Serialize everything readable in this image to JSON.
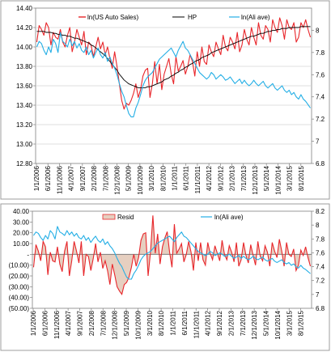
{
  "chart_data": [
    {
      "type": "line",
      "title": "",
      "xlabel": "",
      "ylabel": "",
      "x_tick_labels": [
        "1/1/2006",
        "6/1/2006",
        "11/1/2006",
        "4/1/2007",
        "9/1/2007",
        "2/1/2008",
        "7/1/2008",
        "12/1/2008",
        "5/1/2009",
        "10/1/2009",
        "3/1/2010",
        "8/1/2010",
        "1/1/2011",
        "6/1/2011",
        "11/1/2011",
        "4/1/2012",
        "9/1/2012",
        "2/1/2013",
        "7/1/2013",
        "12/1/2013",
        "5/1/2014",
        "10/1/2014",
        "3/1/2015",
        "8/1/2015"
      ],
      "y_left": {
        "min": 12.8,
        "max": 14.4,
        "step": 0.2,
        "tick_labels": [
          "12.80",
          "13.00",
          "13.20",
          "13.40",
          "13.60",
          "13.80",
          "14.00",
          "14.20",
          "14.40"
        ]
      },
      "y_right": {
        "min": 6.8,
        "max": 8.2,
        "step": 0.2,
        "tick_labels": [
          "6.8",
          "7",
          "7.2",
          "7.4",
          "7.6",
          "7.8",
          "8"
        ]
      },
      "legend_position": "top",
      "series": [
        {
          "name": "ln(US Auto Sales)",
          "color": "#e8262b",
          "axis": "left",
          "values": [
            14.05,
            14.22,
            14.18,
            14.12,
            14.25,
            14.2,
            14.02,
            14.15,
            14.1,
            14.08,
            14.18,
            14.05,
            14.0,
            14.12,
            14.2,
            13.95,
            14.05,
            14.18,
            14.1,
            14.02,
            14.16,
            13.92,
            14.05,
            14.02,
            13.9,
            14.0,
            14.1,
            13.98,
            14.05,
            13.92,
            14.0,
            13.88,
            13.78,
            13.95,
            13.8,
            13.62,
            13.45,
            13.36,
            13.42,
            13.4,
            13.45,
            13.52,
            13.62,
            13.48,
            13.56,
            13.7,
            13.76,
            13.78,
            13.48,
            13.62,
            13.85,
            13.62,
            13.82,
            13.56,
            13.72,
            13.8,
            13.88,
            13.72,
            13.62,
            13.9,
            13.75,
            13.8,
            13.86,
            13.72,
            13.8,
            13.92,
            13.85,
            13.7,
            13.95,
            13.8,
            14.0,
            13.85,
            13.82,
            14.02,
            13.95,
            13.9,
            14.05,
            13.98,
            13.92,
            14.12,
            14.0,
            13.96,
            14.1,
            14.05,
            13.98,
            14.15,
            13.95,
            14.02,
            14.18,
            14.08,
            14.02,
            14.2,
            14.1,
            14.02,
            14.25,
            14.12,
            14.08,
            14.22,
            14.18,
            14.05,
            14.28,
            14.2,
            14.15,
            14.3,
            14.22,
            14.08,
            14.28,
            14.2,
            14.18,
            14.25,
            14.05,
            14.1,
            14.25,
            14.2,
            14.28,
            14.18,
            14.1
          ]
        },
        {
          "name": "HP",
          "color": "#000000",
          "axis": "left",
          "values": [
            14.16,
            14.16,
            14.16,
            14.16,
            14.15,
            14.15,
            14.15,
            14.14,
            14.14,
            14.13,
            14.13,
            14.12,
            14.12,
            14.11,
            14.11,
            14.1,
            14.09,
            14.09,
            14.08,
            14.07,
            14.06,
            14.05,
            14.04,
            14.02,
            14.01,
            13.99,
            13.97,
            13.95,
            13.93,
            13.91,
            13.88,
            13.85,
            13.82,
            13.79,
            13.76,
            13.72,
            13.69,
            13.66,
            13.64,
            13.62,
            13.61,
            13.6,
            13.59,
            13.58,
            13.58,
            13.58,
            13.58,
            13.59,
            13.59,
            13.6,
            13.61,
            13.62,
            13.63,
            13.64,
            13.66,
            13.67,
            13.68,
            13.7,
            13.71,
            13.73,
            13.74,
            13.76,
            13.77,
            13.79,
            13.8,
            13.82,
            13.83,
            13.85,
            13.86,
            13.87,
            13.89,
            13.9,
            13.91,
            13.92,
            13.94,
            13.95,
            13.96,
            13.97,
            13.98,
            13.99,
            14.0,
            14.01,
            14.02,
            14.03,
            14.04,
            14.05,
            14.06,
            14.07,
            14.08,
            14.09,
            14.1,
            14.11,
            14.11,
            14.12,
            14.13,
            14.14,
            14.14,
            14.15,
            14.16,
            14.16,
            14.17,
            14.17,
            14.18,
            14.18,
            14.19,
            14.19,
            14.19,
            14.2,
            14.2,
            14.2,
            14.2,
            14.2,
            14.21,
            14.21,
            14.21,
            14.21,
            14.21
          ]
        },
        {
          "name": "ln(Ali ave)",
          "color": "#23aee5",
          "axis": "right",
          "values": [
            7.85,
            7.9,
            7.88,
            7.82,
            7.78,
            7.85,
            7.8,
            7.92,
            7.88,
            7.8,
            7.98,
            7.9,
            7.88,
            7.85,
            7.92,
            7.86,
            7.9,
            7.84,
            7.88,
            7.82,
            7.8,
            7.85,
            7.78,
            7.82,
            7.75,
            7.8,
            7.84,
            7.78,
            7.75,
            7.8,
            7.72,
            7.76,
            7.7,
            7.66,
            7.6,
            7.52,
            7.45,
            7.4,
            7.32,
            7.25,
            7.22,
            7.22,
            7.3,
            7.35,
            7.42,
            7.5,
            7.55,
            7.58,
            7.6,
            7.62,
            7.66,
            7.7,
            7.74,
            7.76,
            7.78,
            7.8,
            7.82,
            7.84,
            7.8,
            7.76,
            7.82,
            7.86,
            7.9,
            7.84,
            7.82,
            7.78,
            7.74,
            7.7,
            7.66,
            7.62,
            7.6,
            7.58,
            7.56,
            7.58,
            7.62,
            7.6,
            7.56,
            7.58,
            7.6,
            7.58,
            7.55,
            7.56,
            7.58,
            7.55,
            7.52,
            7.54,
            7.56,
            7.52,
            7.55,
            7.52,
            7.5,
            7.52,
            7.55,
            7.52,
            7.5,
            7.52,
            7.54,
            7.5,
            7.48,
            7.5,
            7.52,
            7.48,
            7.46,
            7.48,
            7.5,
            7.46,
            7.44,
            7.46,
            7.42,
            7.44,
            7.4,
            7.38,
            7.42,
            7.38,
            7.36,
            7.33,
            7.3
          ]
        }
      ]
    },
    {
      "type": "area",
      "title": "",
      "xlabel": "",
      "ylabel": "",
      "x_tick_labels": [
        "1/1/2006",
        "6/1/2006",
        "11/1/2006",
        "4/1/2007",
        "9/1/2007",
        "2/1/2008",
        "7/1/2008",
        "12/1/2008",
        "5/1/2009",
        "10/1/2009",
        "3/1/2010",
        "8/1/2010",
        "1/1/2011",
        "6/1/2011",
        "11/1/2011",
        "4/1/2012",
        "9/1/2012",
        "2/1/2013",
        "7/1/2013",
        "12/1/2013",
        "5/1/2014",
        "10/1/2014",
        "3/1/2015",
        "8/1/2015"
      ],
      "y_left": {
        "min": -50,
        "max": 40,
        "step": 10,
        "tick_labels": [
          "(50.00)",
          "(40.00)",
          "(30.00)",
          "(20.00)",
          "(10.00)",
          "-",
          "10.00",
          "20.00",
          "30.00",
          "40.00"
        ]
      },
      "y_right": {
        "min": 6.8,
        "max": 8.2,
        "step": 0.2,
        "tick_labels": [
          "6.8",
          "7",
          "7.2",
          "7.4",
          "7.6",
          "7.8",
          "8",
          "8.2"
        ]
      },
      "legend_position": "top",
      "series": [
        {
          "name": "Resid",
          "fill": "#e6cfc0",
          "line": "#e8262b",
          "axis": "left",
          "values": [
            -12,
            9,
            3,
            -6,
            12,
            7,
            -19,
            2,
            -6,
            -7,
            7,
            -9,
            -16,
            3,
            12,
            -20,
            -6,
            12,
            3,
            -8,
            12,
            -20,
            0,
            -2,
            -15,
            -4,
            10,
            -7,
            2,
            -13,
            -6,
            -15,
            -28,
            -9,
            -19,
            -30,
            -34,
            -37,
            -28,
            -26,
            -21,
            -12,
            0,
            -11,
            -3,
            13,
            19,
            20,
            -20,
            2,
            36,
            1,
            19,
            -9,
            7,
            15,
            21,
            2,
            -12,
            28,
            1,
            5,
            10,
            -7,
            0,
            12,
            2,
            -15,
            11,
            -6,
            11,
            -5,
            -10,
            11,
            1,
            -5,
            8,
            1,
            -6,
            13,
            0,
            -5,
            8,
            2,
            -7,
            11,
            -11,
            -5,
            11,
            -1,
            -8,
            9,
            -1,
            -10,
            12,
            -2,
            -6,
            8,
            2,
            -11,
            11,
            3,
            -3,
            14,
            3,
            -11,
            11,
            0,
            -2,
            5,
            -15,
            -10,
            4,
            -1,
            7,
            -3,
            -11
          ]
        },
        {
          "name": "ln(Ali ave)",
          "color": "#23aee5",
          "axis": "right",
          "values": [
            7.85,
            7.9,
            7.88,
            7.82,
            7.78,
            7.85,
            7.8,
            7.92,
            7.88,
            7.8,
            7.98,
            7.9,
            7.88,
            7.85,
            7.92,
            7.86,
            7.9,
            7.84,
            7.88,
            7.82,
            7.8,
            7.85,
            7.78,
            7.82,
            7.75,
            7.8,
            7.84,
            7.78,
            7.75,
            7.8,
            7.72,
            7.76,
            7.7,
            7.66,
            7.6,
            7.52,
            7.45,
            7.4,
            7.32,
            7.25,
            7.22,
            7.22,
            7.3,
            7.35,
            7.42,
            7.5,
            7.55,
            7.58,
            7.6,
            7.62,
            7.66,
            7.7,
            7.74,
            7.76,
            7.78,
            7.8,
            7.82,
            7.84,
            7.8,
            7.76,
            7.82,
            7.86,
            7.9,
            7.84,
            7.82,
            7.78,
            7.74,
            7.7,
            7.66,
            7.62,
            7.6,
            7.58,
            7.56,
            7.58,
            7.62,
            7.6,
            7.56,
            7.58,
            7.6,
            7.58,
            7.55,
            7.56,
            7.58,
            7.55,
            7.52,
            7.54,
            7.56,
            7.52,
            7.55,
            7.52,
            7.5,
            7.52,
            7.55,
            7.52,
            7.5,
            7.52,
            7.54,
            7.5,
            7.48,
            7.5,
            7.52,
            7.48,
            7.46,
            7.48,
            7.5,
            7.46,
            7.44,
            7.46,
            7.42,
            7.44,
            7.4,
            7.38,
            7.42,
            7.38,
            7.36,
            7.33,
            7.3
          ]
        }
      ]
    }
  ]
}
